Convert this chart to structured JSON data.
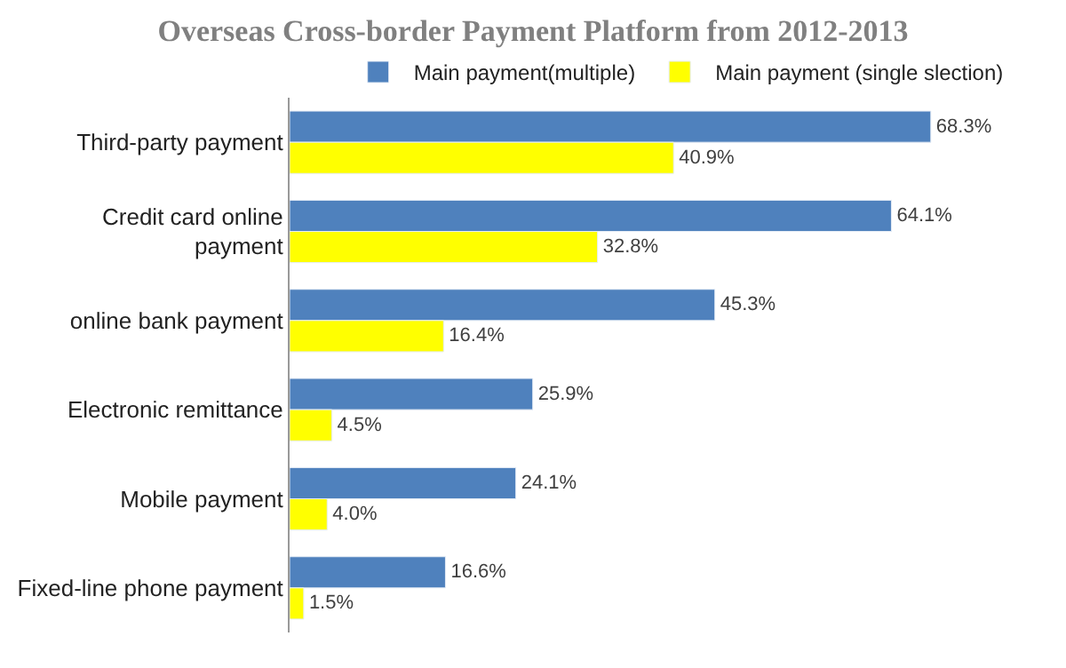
{
  "chart_data": {
    "type": "bar",
    "orientation": "horizontal",
    "title": "Overseas Cross-border Payment Platform from 2012-2013",
    "categories": [
      "Third-party payment",
      "Credit card online payment",
      "online bank payment",
      "Electronic remittance",
      "Mobile payment",
      "Fixed-line phone payment"
    ],
    "series": [
      {
        "name": "Main payment(multiple)",
        "color": "#4f81bd",
        "values": [
          68.3,
          64.1,
          45.3,
          25.9,
          24.1,
          16.6
        ],
        "value_labels": [
          "68.3%",
          "64.1%",
          "45.3%",
          "25.9%",
          "24.1%",
          "16.6%"
        ]
      },
      {
        "name": "Main payment (single slection)",
        "color": "#ffff00",
        "values": [
          40.9,
          32.8,
          16.4,
          4.5,
          4.0,
          1.5
        ],
        "value_labels": [
          "40.9%",
          "32.8%",
          "16.4%",
          "4.5%",
          "4.0%",
          "1.5%"
        ]
      }
    ],
    "legend": "top",
    "tick_labels": "y"
  }
}
